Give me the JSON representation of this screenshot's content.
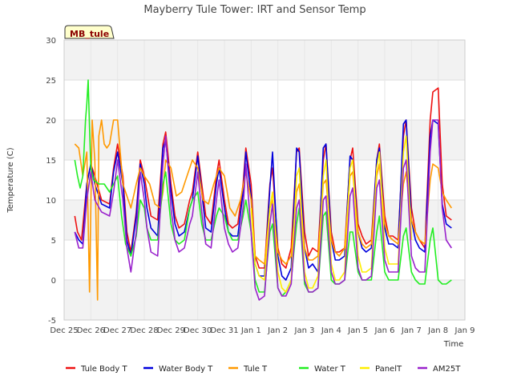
{
  "chart_data": {
    "type": "line",
    "title": "Mayberry Tule Tower: IRT and Sensor Temp",
    "badge": "MB_tule",
    "xlabel": "Time",
    "ylabel": "Temperature (C)",
    "xlim": [
      0,
      15
    ],
    "ylim": [
      -5,
      30
    ],
    "y_ticks": [
      -5,
      0,
      5,
      10,
      15,
      20,
      25,
      30
    ],
    "x_ticks": [
      0,
      1,
      2,
      3,
      4,
      5,
      6,
      7,
      8,
      9,
      10,
      11,
      12,
      13,
      14,
      15
    ],
    "x_tick_labels": [
      "Dec 25",
      "Dec 26",
      "Dec 27",
      "Dec 28",
      "Dec 29",
      "Dec 30",
      "Dec 31",
      "Jan 1",
      "Jan 2",
      "Jan 3",
      "Jan 4",
      "Jan 5",
      "Jan 6",
      "Jan 7",
      "Jan 8",
      "Jan 9"
    ],
    "x_unit": "days since Dec 25",
    "grid": true,
    "legend_position": "bottom",
    "series": [
      {
        "name": "Tule Body T",
        "color": "#ee1111",
        "x": [
          0.4,
          0.5,
          0.65,
          0.85,
          1.0,
          1.15,
          1.4,
          1.7,
          1.85,
          2.0,
          2.2,
          2.35,
          2.5,
          2.7,
          2.85,
          3.0,
          3.1,
          3.25,
          3.5,
          3.7,
          3.8,
          4.0,
          4.15,
          4.3,
          4.5,
          4.7,
          4.8,
          5.0,
          5.15,
          5.3,
          5.5,
          5.7,
          5.8,
          6.0,
          6.15,
          6.3,
          6.5,
          6.7,
          6.8,
          7.0,
          7.15,
          7.3,
          7.5,
          7.7,
          7.8,
          8.0,
          8.15,
          8.3,
          8.5,
          8.7,
          8.8,
          9.0,
          9.15,
          9.3,
          9.5,
          9.7,
          9.8,
          10.0,
          10.15,
          10.3,
          10.5,
          10.7,
          10.8,
          11.0,
          11.15,
          11.3,
          11.5,
          11.7,
          11.8,
          12.0,
          12.15,
          12.3,
          12.5,
          12.7,
          12.8,
          13.0,
          13.15,
          13.3,
          13.5,
          13.7,
          13.8,
          14.0,
          14.15,
          14.3,
          14.5
        ],
        "y": [
          8.0,
          6.0,
          5.0,
          12.0,
          14.5,
          13.0,
          10.0,
          9.5,
          14.0,
          17.0,
          13.0,
          6.0,
          3.5,
          8.5,
          15.0,
          13.0,
          11.0,
          8.0,
          7.5,
          17.0,
          18.5,
          12.0,
          8.0,
          6.5,
          7.0,
          10.0,
          11.0,
          16.0,
          12.0,
          8.0,
          7.0,
          13.0,
          15.0,
          10.0,
          7.0,
          6.5,
          7.0,
          12.0,
          16.5,
          12.0,
          3.0,
          1.5,
          1.5,
          12.0,
          14.0,
          4.0,
          2.0,
          1.5,
          4.0,
          16.0,
          16.5,
          6.0,
          3.0,
          4.0,
          3.5,
          15.0,
          17.0,
          6.0,
          3.5,
          3.5,
          4.0,
          15.0,
          16.5,
          7.0,
          5.5,
          4.5,
          5.0,
          15.0,
          17.0,
          8.0,
          5.5,
          5.5,
          5.0,
          18.0,
          20.0,
          9.0,
          6.0,
          5.0,
          4.0,
          20.0,
          23.5,
          24.0,
          12.0,
          8.0,
          7.5
        ]
      },
      {
        "name": "Water Body T",
        "color": "#0000dd",
        "x": [
          0.4,
          0.55,
          0.7,
          0.85,
          1.0,
          1.15,
          1.4,
          1.7,
          1.85,
          2.0,
          2.2,
          2.35,
          2.5,
          2.7,
          2.85,
          3.0,
          3.1,
          3.25,
          3.5,
          3.7,
          3.8,
          4.0,
          4.15,
          4.3,
          4.5,
          4.7,
          4.8,
          5.0,
          5.15,
          5.3,
          5.5,
          5.7,
          5.8,
          6.0,
          6.15,
          6.3,
          6.5,
          6.7,
          6.8,
          7.0,
          7.15,
          7.3,
          7.5,
          7.7,
          7.8,
          8.0,
          8.15,
          8.3,
          8.5,
          8.7,
          8.8,
          9.0,
          9.15,
          9.3,
          9.5,
          9.7,
          9.8,
          10.0,
          10.15,
          10.3,
          10.5,
          10.7,
          10.8,
          11.0,
          11.15,
          11.3,
          11.5,
          11.7,
          11.8,
          12.0,
          12.15,
          12.3,
          12.5,
          12.7,
          12.8,
          13.0,
          13.15,
          13.3,
          13.5,
          13.7,
          13.8,
          14.0,
          14.15,
          14.3,
          14.5
        ],
        "y": [
          6.0,
          5.0,
          4.5,
          12.0,
          14.5,
          12.0,
          9.5,
          9.0,
          13.5,
          16.0,
          12.0,
          5.0,
          3.0,
          8.0,
          14.5,
          12.0,
          9.0,
          6.5,
          5.5,
          16.5,
          17.5,
          11.0,
          7.0,
          5.5,
          6.0,
          9.0,
          10.0,
          15.5,
          11.0,
          6.5,
          6.0,
          12.0,
          14.0,
          9.0,
          6.0,
          5.5,
          5.5,
          11.0,
          16.0,
          10.5,
          2.0,
          0.5,
          0.5,
          11.5,
          16.0,
          3.0,
          0.5,
          0.0,
          1.5,
          16.5,
          16.0,
          4.0,
          1.5,
          2.0,
          1.0,
          16.5,
          17.0,
          5.0,
          2.5,
          2.5,
          3.0,
          15.5,
          15.0,
          6.0,
          4.0,
          3.5,
          4.0,
          15.0,
          16.5,
          6.5,
          4.5,
          4.5,
          4.0,
          19.5,
          20.0,
          7.5,
          5.0,
          4.0,
          3.5,
          18.0,
          20.0,
          19.5,
          9.5,
          7.0,
          6.5
        ]
      },
      {
        "name": "Tule T",
        "color": "#ff9900",
        "x": [
          0.4,
          0.55,
          0.7,
          0.85,
          0.95,
          1.05,
          1.15,
          1.25,
          1.3,
          1.4,
          1.5,
          1.6,
          1.7,
          1.85,
          2.0,
          2.2,
          2.4,
          2.5,
          2.7,
          2.85,
          3.0,
          3.2,
          3.4,
          3.6,
          3.7,
          3.8,
          4.0,
          4.2,
          4.4,
          4.6,
          4.8,
          5.0,
          5.2,
          5.4,
          5.6,
          5.8,
          6.0,
          6.2,
          6.4,
          6.6,
          6.8,
          7.0,
          7.15,
          7.3,
          7.5,
          7.7,
          7.8,
          8.0,
          8.15,
          8.3,
          8.5,
          8.7,
          8.8,
          9.0,
          9.15,
          9.3,
          9.5,
          9.7,
          9.8,
          10.0,
          10.15,
          10.3,
          10.5,
          10.7,
          10.8,
          11.0,
          11.15,
          11.3,
          11.5,
          11.7,
          11.8,
          12.0,
          12.15,
          12.3,
          12.5,
          12.7,
          12.8,
          13.0,
          13.15,
          13.3,
          13.5,
          13.7,
          13.8,
          14.0,
          14.15,
          14.3,
          14.5
        ],
        "y": [
          17.0,
          16.5,
          13.0,
          16.0,
          -1.5,
          20.0,
          15.0,
          -2.5,
          18.0,
          20.0,
          17.0,
          16.5,
          17.0,
          20.0,
          20.0,
          12.0,
          10.0,
          9.0,
          12.0,
          14.0,
          13.0,
          12.0,
          9.5,
          9.0,
          11.0,
          15.0,
          14.0,
          10.5,
          11.0,
          13.0,
          15.0,
          14.0,
          10.0,
          9.5,
          12.0,
          14.0,
          13.0,
          9.0,
          8.0,
          10.0,
          13.5,
          10.0,
          3.0,
          2.5,
          2.0,
          9.0,
          10.0,
          3.5,
          2.5,
          2.0,
          3.0,
          11.0,
          12.0,
          4.0,
          2.5,
          2.5,
          3.0,
          12.0,
          12.5,
          5.0,
          3.5,
          3.0,
          4.0,
          13.0,
          13.5,
          6.0,
          4.5,
          4.0,
          4.5,
          13.0,
          14.5,
          7.0,
          5.5,
          5.0,
          4.5,
          12.0,
          13.5,
          7.5,
          6.0,
          5.0,
          4.5,
          12.5,
          14.5,
          14.0,
          11.0,
          10.0,
          9.0
        ]
      },
      {
        "name": "Water T",
        "color": "#22ee22",
        "x": [
          0.4,
          0.5,
          0.6,
          0.7,
          0.8,
          0.85,
          0.9,
          0.95,
          1.0,
          1.1,
          1.3,
          1.5,
          1.7,
          1.85,
          2.0,
          2.15,
          2.3,
          2.5,
          2.7,
          2.85,
          3.0,
          3.1,
          3.25,
          3.5,
          3.7,
          3.8,
          4.0,
          4.15,
          4.3,
          4.5,
          4.7,
          4.8,
          5.0,
          5.15,
          5.3,
          5.5,
          5.7,
          5.8,
          6.0,
          6.15,
          6.3,
          6.5,
          6.7,
          6.8,
          7.0,
          7.15,
          7.3,
          7.5,
          7.7,
          7.8,
          8.0,
          8.15,
          8.3,
          8.5,
          8.7,
          8.8,
          9.0,
          9.15,
          9.3,
          9.5,
          9.7,
          9.8,
          10.0,
          10.15,
          10.3,
          10.5,
          10.7,
          10.8,
          11.0,
          11.15,
          11.3,
          11.5,
          11.7,
          11.8,
          12.0,
          12.15,
          12.3,
          12.5,
          12.7,
          12.8,
          13.0,
          13.15,
          13.3,
          13.5,
          13.7,
          13.8,
          14.0,
          14.15,
          14.3,
          14.5
        ],
        "y": [
          15.0,
          13.0,
          11.5,
          13.0,
          20.0,
          22.0,
          25.0,
          19.0,
          14.0,
          12.5,
          12.0,
          12.0,
          11.0,
          12.0,
          13.0,
          8.0,
          4.5,
          3.0,
          5.5,
          10.0,
          9.0,
          6.5,
          5.0,
          5.0,
          12.0,
          13.5,
          7.0,
          5.0,
          4.5,
          5.0,
          9.0,
          10.0,
          11.0,
          7.0,
          5.0,
          5.0,
          8.0,
          9.0,
          8.0,
          6.0,
          5.0,
          5.0,
          8.0,
          10.0,
          6.0,
          0.0,
          -1.5,
          -1.5,
          6.0,
          7.0,
          -1.0,
          -2.0,
          -1.5,
          0.0,
          7.0,
          9.0,
          -0.5,
          -1.5,
          -1.5,
          -1.0,
          8.0,
          8.5,
          0.0,
          -0.5,
          -0.5,
          0.0,
          6.0,
          6.0,
          1.0,
          0.0,
          0.0,
          0.0,
          6.0,
          8.0,
          1.0,
          0.0,
          0.0,
          0.0,
          5.5,
          6.5,
          1.0,
          0.0,
          -0.5,
          -0.5,
          5.0,
          6.5,
          0.0,
          -0.5,
          -0.5,
          0.0
        ]
      },
      {
        "name": "PanelT",
        "color": "#ffee00",
        "x": [
          7.0,
          7.15,
          7.3,
          7.5,
          7.7,
          7.8,
          8.0,
          8.15,
          8.3,
          8.5,
          8.7,
          8.8,
          9.0,
          9.15,
          9.3,
          9.5,
          9.7,
          9.8,
          10.0,
          10.15,
          10.3,
          10.5,
          10.7,
          10.8,
          11.0,
          11.15,
          11.3,
          11.5,
          11.7,
          11.8,
          12.0,
          12.15,
          12.3,
          12.5,
          12.7,
          12.8,
          13.0
        ],
        "y": [
          9.0,
          2.0,
          0.5,
          0.0,
          9.0,
          11.0,
          1.0,
          -1.0,
          -1.5,
          0.0,
          13.0,
          14.0,
          1.0,
          -1.0,
          -1.0,
          0.5,
          13.0,
          15.0,
          2.0,
          0.0,
          0.0,
          1.0,
          14.0,
          15.0,
          3.0,
          1.0,
          1.0,
          1.5,
          14.0,
          16.0,
          4.0,
          2.0,
          2.0,
          2.0,
          16.0,
          18.0,
          5.0
        ]
      },
      {
        "name": "AM25T",
        "color": "#9922cc",
        "x": [
          0.4,
          0.55,
          0.7,
          0.85,
          1.0,
          1.15,
          1.4,
          1.7,
          1.85,
          2.0,
          2.2,
          2.35,
          2.5,
          2.7,
          2.85,
          3.0,
          3.1,
          3.25,
          3.5,
          3.7,
          3.8,
          4.0,
          4.15,
          4.3,
          4.5,
          4.7,
          4.8,
          5.0,
          5.15,
          5.3,
          5.5,
          5.7,
          5.8,
          6.0,
          6.15,
          6.3,
          6.5,
          6.7,
          6.8,
          7.0,
          7.15,
          7.3,
          7.5,
          7.7,
          7.8,
          8.0,
          8.15,
          8.3,
          8.5,
          8.7,
          8.8,
          9.0,
          9.15,
          9.3,
          9.5,
          9.7,
          9.8,
          10.0,
          10.15,
          10.3,
          10.5,
          10.7,
          10.8,
          11.0,
          11.15,
          11.3,
          11.5,
          11.7,
          11.8,
          12.0,
          12.15,
          12.3,
          12.5,
          12.7,
          12.8,
          13.0,
          13.15,
          13.3,
          13.5,
          13.7,
          13.8,
          14.0,
          14.15,
          14.3,
          14.5
        ],
        "y": [
          6.0,
          4.0,
          4.0,
          10.0,
          13.5,
          10.0,
          8.5,
          8.0,
          11.0,
          15.0,
          10.0,
          4.0,
          1.0,
          6.0,
          13.5,
          10.0,
          6.5,
          3.5,
          3.0,
          14.5,
          18.0,
          9.0,
          5.0,
          3.5,
          4.0,
          7.0,
          8.0,
          13.5,
          8.5,
          4.5,
          4.0,
          10.0,
          12.5,
          6.5,
          4.5,
          3.5,
          4.0,
          9.0,
          14.5,
          6.0,
          -1.0,
          -2.5,
          -2.0,
          7.0,
          9.5,
          -1.0,
          -2.0,
          -2.0,
          -0.5,
          9.0,
          10.0,
          0.0,
          -1.5,
          -1.5,
          -1.0,
          10.0,
          10.5,
          1.0,
          -0.5,
          -0.5,
          0.0,
          10.5,
          11.5,
          1.5,
          0.0,
          0.0,
          0.5,
          11.5,
          12.5,
          2.5,
          1.0,
          1.0,
          1.0,
          14.0,
          15.0,
          3.0,
          1.5,
          1.0,
          1.0,
          16.0,
          20.0,
          20.0,
          9.0,
          5.0,
          4.0
        ]
      }
    ]
  }
}
